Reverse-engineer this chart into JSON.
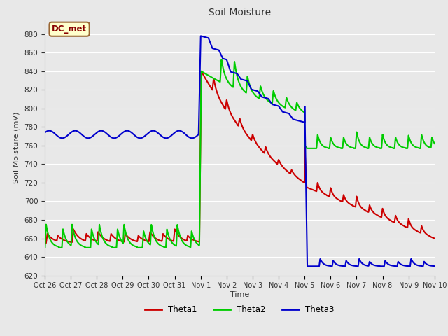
{
  "title": "Soil Moisture",
  "ylabel": "Soil Moisture (mV)",
  "xlabel": "Time",
  "ylim": [
    620,
    895
  ],
  "yticks": [
    620,
    640,
    660,
    680,
    700,
    720,
    740,
    760,
    780,
    800,
    820,
    840,
    860,
    880
  ],
  "annotation_text": "DC_met",
  "annotation_bg": "#ffffcc",
  "annotation_border": "#996633",
  "bg_color": "#e8e8e8",
  "grid_color": "#ffffff",
  "line_colors": {
    "Theta1": "#cc0000",
    "Theta2": "#00cc00",
    "Theta3": "#0000cc"
  },
  "line_width": 1.5,
  "x_labels": [
    "Oct 26",
    "Oct 27",
    "Oct 28",
    "Oct 29",
    "Oct 30",
    "Oct 31",
    "Nov 1",
    "Nov 2",
    "Nov 3",
    "Nov 4",
    "Nov 5",
    "Nov 6",
    "Nov 7",
    "Nov 8",
    "Nov 9",
    "Nov 10"
  ],
  "x_tick_positions": [
    0,
    1,
    2,
    3,
    4,
    5,
    6,
    7,
    8,
    9,
    10,
    11,
    12,
    13,
    14,
    15
  ]
}
